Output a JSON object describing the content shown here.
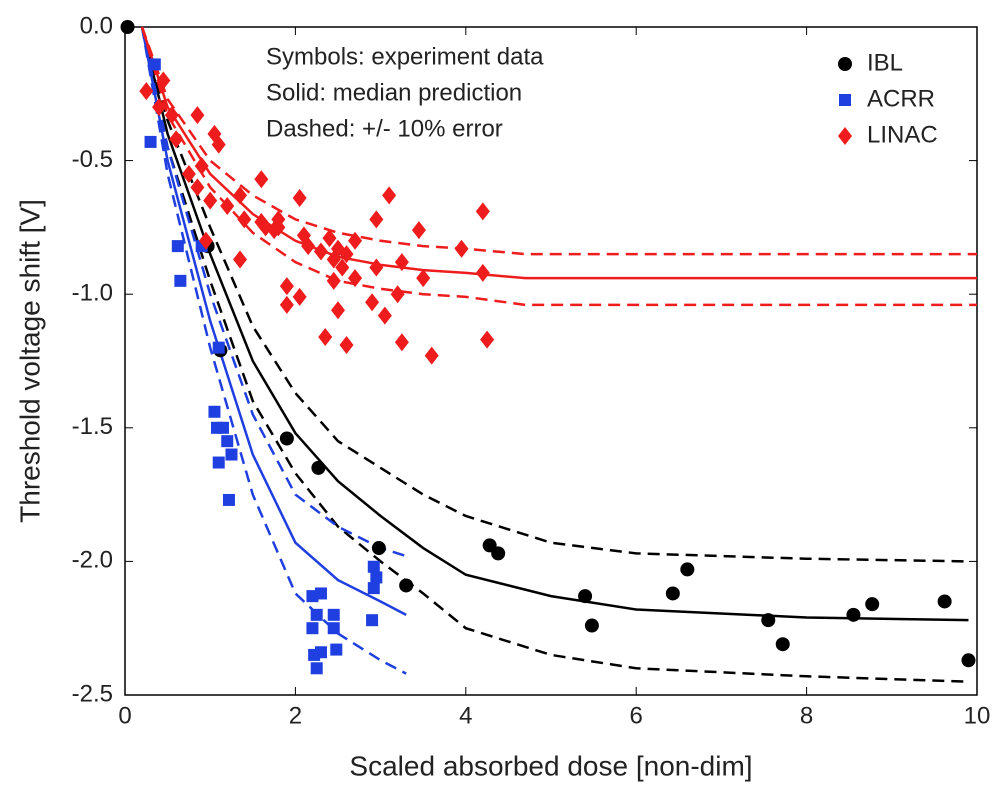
{
  "chart_data": {
    "type": "scatter",
    "xlabel": "Scaled absorbed dose [non-dim]",
    "ylabel": "Threshold voltage shift [V]",
    "annotations": [
      "Symbols: experiment data",
      "Solid: median prediction",
      "Dashed: +/- 10% error"
    ],
    "xlim": [
      0,
      10
    ],
    "ylim": [
      -2.5,
      0
    ],
    "xticks": [
      0,
      2,
      4,
      6,
      8,
      10
    ],
    "yticks": [
      {
        "value": 0,
        "label": "0.0"
      },
      -0.5,
      {
        "value": -1,
        "label": "-1.0"
      },
      -1.5,
      {
        "value": -2,
        "label": "-2.0"
      },
      -2.5
    ],
    "legend": "upper right",
    "grid": false,
    "series": [
      {
        "name": "IBL",
        "color": "#000000",
        "marker": "circle",
        "x": [
          0.03,
          0.97,
          1.12,
          1.9,
          2.27,
          2.98,
          3.3,
          4.28,
          4.38,
          5.4,
          5.48,
          6.43,
          6.6,
          7.55,
          7.72,
          8.55,
          8.77,
          9.62,
          9.9
        ],
        "values": [
          0,
          -0.82,
          -1.21,
          -1.54,
          -1.65,
          -1.95,
          -2.09,
          -1.94,
          -1.97,
          -2.13,
          -2.24,
          -2.12,
          -2.03,
          -2.22,
          -2.31,
          -2.2,
          -2.16,
          -2.15,
          -2.37
        ]
      },
      {
        "name": "ACRR",
        "color": "#1f3fe0",
        "marker": "square",
        "x": [
          0.3,
          0.35,
          0.62,
          0.65,
          0.9,
          1.05,
          1.08,
          1.1,
          1.15,
          1.2,
          1.25,
          1.22,
          1.1,
          2.2,
          2.25,
          2.3,
          2.2,
          2.22,
          2.25,
          2.3,
          2.45,
          2.48,
          2.45,
          2.92,
          2.92,
          2.9,
          2.95
        ],
        "values": [
          -0.43,
          -0.14,
          -0.82,
          -0.95,
          -0.82,
          -1.44,
          -1.5,
          -1.63,
          -1.5,
          -1.55,
          -1.6,
          -1.77,
          -1.2,
          -2.13,
          -2.2,
          -2.12,
          -2.25,
          -2.35,
          -2.4,
          -2.34,
          -2.2,
          -2.33,
          -2.25,
          -2.02,
          -2.1,
          -2.22,
          -2.06
        ]
      },
      {
        "name": "LINAC",
        "color": "#ee1c1c",
        "marker": "diamond",
        "x": [
          0.25,
          0.45,
          0.4,
          0.55,
          0.6,
          0.75,
          0.85,
          0.9,
          0.85,
          1.0,
          1.05,
          1.1,
          1.2,
          1.35,
          1.4,
          1.35,
          1.6,
          1.6,
          1.65,
          1.75,
          1.8,
          1.9,
          1.9,
          2.05,
          2.05,
          2.1,
          2.15,
          2.3,
          2.4,
          2.45,
          2.45,
          2.5,
          2.5,
          2.55,
          2.6,
          2.6,
          2.7,
          2.7,
          2.35,
          2.9,
          2.95,
          2.95,
          3.1,
          3.05,
          3.2,
          3.25,
          3.25,
          3.45,
          3.5,
          3.6,
          3.95,
          4.2,
          4.2,
          4.25,
          0.95,
          1.8
        ],
        "values": [
          -0.24,
          -0.2,
          -0.3,
          -0.33,
          -0.42,
          -0.55,
          -0.33,
          -0.52,
          -0.6,
          -0.65,
          -0.4,
          -0.44,
          -0.67,
          -0.63,
          -0.72,
          -0.87,
          -0.57,
          -0.73,
          -0.75,
          -0.76,
          -0.72,
          -0.97,
          -1.04,
          -0.64,
          -1.01,
          -0.78,
          -0.82,
          -0.84,
          -0.79,
          -0.87,
          -0.95,
          -0.83,
          -1.06,
          -0.9,
          -1.19,
          -0.85,
          -0.8,
          -0.94,
          -1.16,
          -1.03,
          -0.72,
          -0.9,
          -0.63,
          -1.08,
          -1.0,
          -0.88,
          -1.18,
          -0.76,
          -0.94,
          -1.23,
          -0.83,
          -0.69,
          -0.92,
          -1.17,
          -0.8,
          -0.75
        ]
      }
    ],
    "lines": [
      {
        "color": "#000000",
        "style": "solid",
        "x": [
          0.2,
          0.5,
          1,
          1.5,
          2,
          2.5,
          3,
          3.5,
          4,
          5,
          6,
          8,
          9.9
        ],
        "values": [
          0,
          -0.4,
          -0.85,
          -1.25,
          -1.52,
          -1.7,
          -1.83,
          -1.95,
          -2.05,
          -2.13,
          -2.18,
          -2.21,
          -2.22
        ]
      },
      {
        "color": "#000000",
        "style": "dashed",
        "x": [
          0.2,
          0.5,
          1,
          1.5,
          2,
          2.5,
          3,
          3.5,
          4,
          5,
          6,
          8,
          9.9
        ],
        "values": [
          0,
          -0.35,
          -0.75,
          -1.12,
          -1.37,
          -1.55,
          -1.65,
          -1.75,
          -1.83,
          -1.93,
          -1.97,
          -1.99,
          -2.0
        ]
      },
      {
        "color": "#000000",
        "style": "dashed",
        "x": [
          0.2,
          0.5,
          1,
          1.5,
          2,
          2.5,
          3,
          3.5,
          4,
          5,
          6,
          8,
          9.9
        ],
        "values": [
          0,
          -0.45,
          -0.95,
          -1.4,
          -1.67,
          -1.87,
          -2.0,
          -2.12,
          -2.25,
          -2.35,
          -2.4,
          -2.43,
          -2.45
        ]
      },
      {
        "color": "#1f3fe0",
        "style": "solid",
        "x": [
          0.2,
          0.5,
          1,
          1.5,
          2,
          2.5,
          3,
          3.3
        ],
        "values": [
          0,
          -0.5,
          -1.1,
          -1.6,
          -1.93,
          -2.07,
          -2.15,
          -2.2
        ]
      },
      {
        "color": "#1f3fe0",
        "style": "dashed",
        "x": [
          0.2,
          0.5,
          1,
          1.5,
          2,
          2.5,
          3,
          3.3
        ],
        "values": [
          0,
          -0.45,
          -1.0,
          -1.45,
          -1.75,
          -1.87,
          -1.95,
          -1.98
        ]
      },
      {
        "color": "#1f3fe0",
        "style": "dashed",
        "x": [
          0.2,
          0.5,
          1,
          1.5,
          2,
          2.5,
          3,
          3.3
        ],
        "values": [
          0,
          -0.55,
          -1.2,
          -1.75,
          -2.12,
          -2.27,
          -2.37,
          -2.42
        ]
      },
      {
        "color": "#ee1c1c",
        "style": "solid",
        "x": [
          0.2,
          0.5,
          1,
          1.5,
          2,
          2.5,
          3,
          3.5,
          4,
          4.7,
          6,
          8,
          10
        ],
        "values": [
          0,
          -0.3,
          -0.55,
          -0.7,
          -0.8,
          -0.86,
          -0.89,
          -0.91,
          -0.92,
          -0.94,
          -0.94,
          -0.94,
          -0.94
        ]
      },
      {
        "color": "#ee1c1c",
        "style": "dashed",
        "x": [
          0.2,
          0.5,
          1,
          1.5,
          2,
          2.5,
          3,
          3.5,
          4,
          4.7,
          6,
          8,
          10
        ],
        "values": [
          0,
          -0.27,
          -0.5,
          -0.63,
          -0.72,
          -0.77,
          -0.8,
          -0.82,
          -0.83,
          -0.85,
          -0.85,
          -0.85,
          -0.85
        ]
      },
      {
        "color": "#ee1c1c",
        "style": "dashed",
        "x": [
          0.2,
          0.5,
          1,
          1.5,
          2,
          2.5,
          3,
          3.5,
          4,
          4.7,
          6,
          8,
          10
        ],
        "values": [
          0,
          -0.33,
          -0.6,
          -0.77,
          -0.88,
          -0.95,
          -0.98,
          -1.0,
          -1.01,
          -1.04,
          -1.04,
          -1.04,
          -1.04
        ]
      }
    ]
  }
}
